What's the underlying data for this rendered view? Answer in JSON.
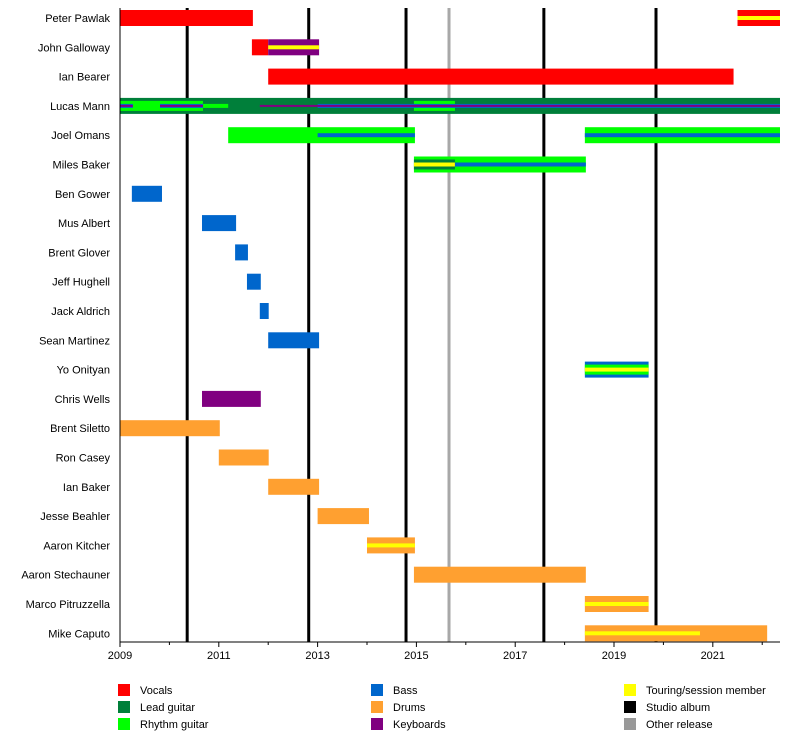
{
  "chart_data": {
    "type": "timeline",
    "xlim": [
      2009,
      2022.36
    ],
    "x_ticks": [
      2009,
      2011,
      2013,
      2015,
      2017,
      2019,
      2021
    ],
    "grid": false,
    "legend_position": "bottom",
    "roles": {
      "vocals": {
        "label": "Vocals",
        "color": "#FF0000"
      },
      "lead": {
        "label": "Lead guitar",
        "color": "#007F3A"
      },
      "rhythm": {
        "label": "Rhythm guitar",
        "color": "#00FF00"
      },
      "bass": {
        "label": "Bass",
        "color": "#0066CC"
      },
      "drums": {
        "label": "Drums",
        "color": "#FFA030"
      },
      "keyboards": {
        "label": "Keyboards",
        "color": "#800080"
      },
      "touring": {
        "label": "Touring/session member",
        "color": "#FFFF00"
      },
      "studio": {
        "label": "Studio album",
        "color": "#000000"
      },
      "other": {
        "label": "Other release",
        "color": "#999999"
      }
    },
    "legend_order": [
      "vocals",
      "lead",
      "rhythm",
      "bass",
      "drums",
      "keyboards",
      "touring",
      "studio",
      "other"
    ],
    "studio_albums": [
      2010.36,
      2012.82,
      2014.79,
      2017.58,
      2019.85
    ],
    "other_releases": [
      2015.66
    ],
    "members": [
      {
        "name": "Peter Pawlak",
        "segments": [
          {
            "role": "vocals",
            "start": 2009,
            "end": 2011.69,
            "layer": "full"
          },
          {
            "role": "vocals",
            "start": 2021.5,
            "end": 2022.36,
            "layer": "full"
          },
          {
            "role": "touring",
            "start": 2021.5,
            "end": 2022.36,
            "layer": "center"
          }
        ]
      },
      {
        "name": "John Galloway",
        "segments": [
          {
            "role": "vocals",
            "start": 2011.67,
            "end": 2012.0,
            "layer": "full"
          },
          {
            "role": "keyboards",
            "start": 2012.0,
            "end": 2013.03,
            "layer": "full"
          },
          {
            "role": "touring",
            "start": 2012.0,
            "end": 2013.03,
            "layer": "center"
          }
        ]
      },
      {
        "name": "Ian Bearer",
        "segments": [
          {
            "role": "vocals",
            "start": 2012.0,
            "end": 2021.42,
            "layer": "full"
          }
        ]
      },
      {
        "name": "Lucas Mann",
        "segments": [
          {
            "role": "lead",
            "start": 2009,
            "end": 2022.36,
            "layer": "full"
          },
          {
            "role": "rhythm",
            "start": 2009,
            "end": 2010.68,
            "layer": "mid"
          },
          {
            "role": "rhythm",
            "start": 2010.68,
            "end": 2011.19,
            "layer": "center"
          },
          {
            "role": "rhythm",
            "start": 2014.95,
            "end": 2015.78,
            "layer": "mid"
          },
          {
            "role": "bass",
            "start": 2009,
            "end": 2009.26,
            "layer": "center"
          },
          {
            "role": "bass",
            "start": 2009.81,
            "end": 2010.68,
            "layer": "center"
          },
          {
            "role": "bass",
            "start": 2013.0,
            "end": 2022.36,
            "layer": "center"
          },
          {
            "role": "keyboards",
            "start": 2009,
            "end": 2009.26,
            "layer": "thin"
          },
          {
            "role": "keyboards",
            "start": 2009.81,
            "end": 2010.68,
            "layer": "thin"
          },
          {
            "role": "keyboards",
            "start": 2011.83,
            "end": 2022.36,
            "layer": "thin"
          }
        ]
      },
      {
        "name": "Joel Omans",
        "segments": [
          {
            "role": "rhythm",
            "start": 2011.19,
            "end": 2014.97,
            "layer": "full"
          },
          {
            "role": "bass",
            "start": 2013.0,
            "end": 2014.97,
            "layer": "center"
          },
          {
            "role": "rhythm",
            "start": 2018.41,
            "end": 2022.36,
            "layer": "full"
          },
          {
            "role": "bass",
            "start": 2018.41,
            "end": 2022.36,
            "layer": "center"
          }
        ]
      },
      {
        "name": "Miles Baker",
        "segments": [
          {
            "role": "rhythm",
            "start": 2014.95,
            "end": 2018.43,
            "layer": "full"
          },
          {
            "role": "lead",
            "start": 2014.95,
            "end": 2015.78,
            "layer": "mid"
          },
          {
            "role": "touring",
            "start": 2014.95,
            "end": 2015.78,
            "layer": "center"
          },
          {
            "role": "bass",
            "start": 2015.78,
            "end": 2018.43,
            "layer": "center"
          }
        ]
      },
      {
        "name": "Ben Gower",
        "segments": [
          {
            "role": "bass",
            "start": 2009.24,
            "end": 2009.85,
            "layer": "full"
          }
        ]
      },
      {
        "name": "Mus Albert",
        "segments": [
          {
            "role": "bass",
            "start": 2010.66,
            "end": 2011.35,
            "layer": "full"
          }
        ]
      },
      {
        "name": "Brent Glover",
        "segments": [
          {
            "role": "bass",
            "start": 2011.33,
            "end": 2011.59,
            "layer": "full"
          }
        ]
      },
      {
        "name": "Jeff Hughell",
        "segments": [
          {
            "role": "bass",
            "start": 2011.57,
            "end": 2011.85,
            "layer": "full"
          }
        ]
      },
      {
        "name": "Jack Aldrich",
        "segments": [
          {
            "role": "bass",
            "start": 2011.83,
            "end": 2012.01,
            "layer": "full"
          }
        ]
      },
      {
        "name": "Sean Martinez",
        "segments": [
          {
            "role": "bass",
            "start": 2012.0,
            "end": 2013.03,
            "layer": "full"
          }
        ]
      },
      {
        "name": "Yo Onityan",
        "segments": [
          {
            "role": "bass",
            "start": 2018.41,
            "end": 2019.7,
            "layer": "full"
          },
          {
            "role": "rhythm",
            "start": 2018.41,
            "end": 2019.7,
            "layer": "mid"
          },
          {
            "role": "touring",
            "start": 2018.41,
            "end": 2019.7,
            "layer": "center"
          }
        ]
      },
      {
        "name": "Chris Wells",
        "segments": [
          {
            "role": "keyboards",
            "start": 2010.66,
            "end": 2011.85,
            "layer": "full"
          }
        ]
      },
      {
        "name": "Brent Siletto",
        "segments": [
          {
            "role": "drums",
            "start": 2009,
            "end": 2011.02,
            "layer": "full"
          }
        ]
      },
      {
        "name": "Ron Casey",
        "segments": [
          {
            "role": "drums",
            "start": 2011.0,
            "end": 2012.01,
            "layer": "full"
          }
        ]
      },
      {
        "name": "Ian Baker",
        "segments": [
          {
            "role": "drums",
            "start": 2012.0,
            "end": 2013.03,
            "layer": "full"
          }
        ]
      },
      {
        "name": "Jesse Beahler",
        "segments": [
          {
            "role": "drums",
            "start": 2013.0,
            "end": 2014.04,
            "layer": "full"
          }
        ]
      },
      {
        "name": "Aaron Kitcher",
        "segments": [
          {
            "role": "drums",
            "start": 2014.0,
            "end": 2014.97,
            "layer": "full"
          },
          {
            "role": "touring",
            "start": 2014.0,
            "end": 2014.97,
            "layer": "center"
          }
        ]
      },
      {
        "name": "Aaron Stechauner",
        "segments": [
          {
            "role": "drums",
            "start": 2014.95,
            "end": 2018.43,
            "layer": "full"
          }
        ]
      },
      {
        "name": "Marco Pitruzzella",
        "segments": [
          {
            "role": "drums",
            "start": 2018.41,
            "end": 2019.7,
            "layer": "full"
          },
          {
            "role": "touring",
            "start": 2018.41,
            "end": 2019.7,
            "layer": "center"
          }
        ]
      },
      {
        "name": "Mike Caputo",
        "segments": [
          {
            "role": "drums",
            "start": 2018.41,
            "end": 2022.1,
            "layer": "full"
          },
          {
            "role": "touring",
            "start": 2018.41,
            "end": 2020.74,
            "layer": "center"
          }
        ]
      }
    ]
  }
}
